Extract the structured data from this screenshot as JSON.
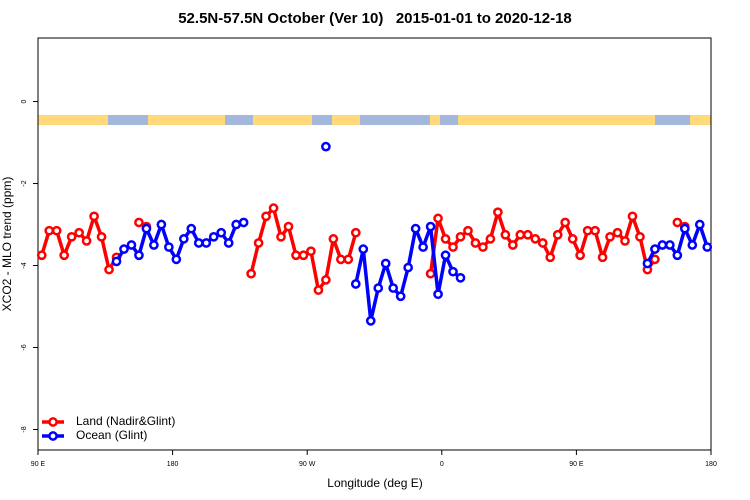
{
  "chart_data": {
    "type": "line",
    "title": "52.5N-57.5N October (Ver 10)   2015-01-01 to 2020-12-18",
    "x_label": "Longitude (deg E)",
    "y_label": "XCO2 - MLO trend (ppm)",
    "x": [
      92.5,
      97.5,
      102.5,
      107.5,
      112.5,
      117.5,
      122.5,
      127.5,
      132.5,
      137.5,
      142.5,
      147.5,
      152.5,
      157.5,
      162.5,
      167.5,
      172.5,
      177.5,
      182.5,
      187.5,
      192.5,
      197.5,
      202.5,
      207.5,
      212.5,
      217.5,
      222.5,
      227.5,
      232.5,
      237.5,
      242.5,
      247.5,
      252.5,
      257.5,
      262.5,
      267.5,
      272.5,
      277.5,
      282.5,
      287.5,
      292.5,
      297.5,
      302.5,
      307.5,
      312.5,
      317.5,
      322.5,
      327.5,
      332.5,
      337.5,
      342.5,
      347.5,
      352.5,
      357.5,
      362.5,
      367.5,
      372.5,
      377.5,
      382.5,
      387.5,
      392.5,
      397.5,
      402.5,
      407.5,
      412.5,
      417.5,
      422.5,
      427.5,
      432.5,
      437.5,
      442.5,
      447.5,
      452.5,
      457.5,
      462.5,
      467.5,
      472.5,
      477.5,
      482.5,
      487.5,
      492.5,
      497.5,
      502.5,
      507.5,
      512.5,
      517.5,
      522.5,
      527.5,
      532.5,
      537.5
    ],
    "series": [
      {
        "name": "Land (Nadir&Glint)",
        "color": "#ff0000",
        "values": [
          -3.75,
          -3.15,
          -3.15,
          -3.75,
          -3.3,
          -3.2,
          -3.4,
          -2.8,
          -3.3,
          -4.1,
          -3.8,
          null,
          null,
          -2.95,
          -3.05,
          null,
          null,
          null,
          null,
          null,
          null,
          null,
          null,
          null,
          null,
          null,
          null,
          null,
          -4.2,
          -3.45,
          -2.8,
          -2.6,
          -3.3,
          -3.05,
          -3.75,
          -3.75,
          -3.65,
          -4.6,
          -4.35,
          -3.35,
          -3.85,
          -3.85,
          -3.2,
          null,
          null,
          null,
          null,
          null,
          null,
          null,
          null,
          null,
          -4.2,
          -2.85,
          -3.35,
          -3.55,
          -3.3,
          -3.15,
          -3.45,
          -3.55,
          -3.35,
          -2.7,
          -3.25,
          -3.5,
          -3.25,
          -3.25,
          -3.35,
          -3.45,
          -3.8,
          -3.25,
          -2.95,
          -3.35,
          -3.75,
          -3.15,
          -3.15,
          -3.8,
          -3.3,
          -3.2,
          -3.4,
          -2.8,
          -3.3,
          -4.1,
          -3.85,
          null,
          null,
          -2.95,
          -3.05,
          null,
          null,
          null
        ]
      },
      {
        "name": "Ocean (Glint)",
        "color": "#0000ff",
        "values": [
          null,
          null,
          null,
          null,
          null,
          null,
          null,
          null,
          null,
          null,
          -3.9,
          -3.6,
          -3.5,
          -3.75,
          -3.1,
          -3.5,
          -3.0,
          -3.55,
          -3.85,
          -3.35,
          -3.1,
          -3.45,
          -3.45,
          -3.3,
          -3.2,
          -3.45,
          -3.0,
          -2.95,
          null,
          null,
          null,
          null,
          null,
          null,
          null,
          null,
          null,
          null,
          -1.1,
          null,
          null,
          null,
          -4.45,
          -3.6,
          -5.35,
          -4.55,
          -3.95,
          -4.55,
          -4.75,
          -4.05,
          -3.1,
          -3.55,
          -3.05,
          -4.7,
          -3.75,
          -4.15,
          -4.3,
          null,
          null,
          null,
          null,
          null,
          null,
          null,
          null,
          null,
          null,
          null,
          null,
          null,
          null,
          null,
          null,
          null,
          null,
          null,
          null,
          null,
          null,
          null,
          null,
          -3.95,
          -3.6,
          -3.5,
          -3.5,
          -3.75,
          -3.1,
          -3.5,
          -3.0,
          -3.55
        ]
      }
    ],
    "xlim": [
      90,
      540
    ],
    "xticks": [
      {
        "value": 90,
        "label": "90 E"
      },
      180,
      {
        "value": 270,
        "label": "90 W"
      },
      {
        "value": 360,
        "label": "0"
      },
      {
        "value": 450,
        "label": "90 E"
      },
      {
        "value": 540,
        "label": "180"
      }
    ],
    "ylim": [
      -8.5,
      1.55
    ],
    "yticks": [
      0,
      -2,
      -4,
      -6,
      -8
    ],
    "legend": "bottom-left"
  }
}
